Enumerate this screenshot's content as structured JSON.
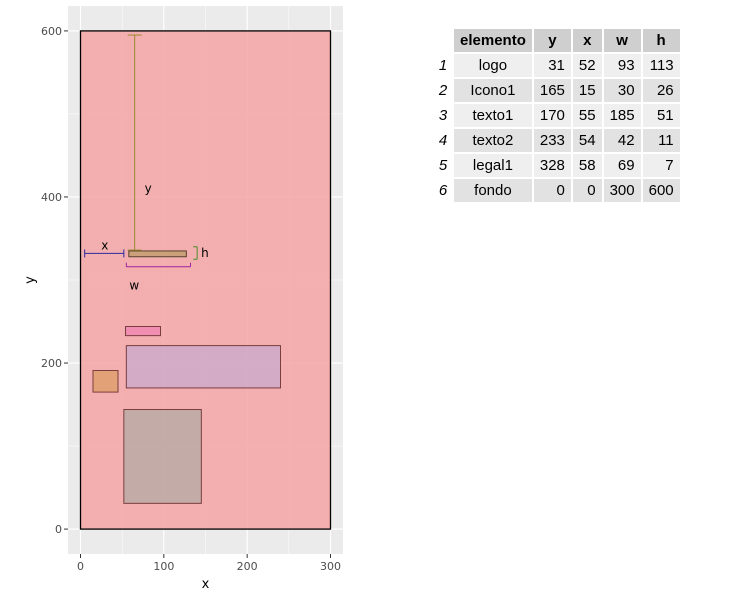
{
  "chart_data": {
    "type": "rect-layout",
    "xlabel": "x",
    "ylabel": "y",
    "xlim": [
      -15,
      315
    ],
    "ylim": [
      -30,
      630
    ],
    "x_ticks": [
      0,
      100,
      200,
      300
    ],
    "y_ticks": [
      0,
      200,
      400,
      600
    ],
    "grid": true,
    "rects": [
      {
        "name": "fondo",
        "xmin": 0,
        "xmax": 300,
        "ymin": 0,
        "ymax": 600,
        "fill": "#f4a4a4",
        "opacity": 0.85,
        "stroke": "#000000"
      },
      {
        "name": "logo",
        "xmin": 52,
        "xmax": 145,
        "ymin": 31,
        "ymax": 144,
        "fill": "#9aa8a0",
        "opacity": 0.55,
        "stroke": "#7a3e3e"
      },
      {
        "name": "Icono1",
        "xmin": 15,
        "xmax": 45,
        "ymin": 165,
        "ymax": 191,
        "fill": "#e0a070",
        "opacity": 0.9,
        "stroke": "#7a3e3e"
      },
      {
        "name": "texto1",
        "xmin": 55,
        "xmax": 240,
        "ymin": 170,
        "ymax": 221,
        "fill": "#b8a8d8",
        "opacity": 0.55,
        "stroke": "#7a3e3e"
      },
      {
        "name": "texto2",
        "xmin": 54,
        "xmax": 96,
        "ymin": 233,
        "ymax": 244,
        "fill": "#f08ab0",
        "opacity": 0.9,
        "stroke": "#7a3e3e"
      },
      {
        "name": "legal1",
        "xmin": 58,
        "xmax": 127,
        "ymin": 328,
        "ymax": 335,
        "fill": "#c8a078",
        "opacity": 0.95,
        "stroke": "#5a3e2e"
      }
    ],
    "annotations": {
      "y": {
        "label": "y",
        "x": 65,
        "from": 336,
        "to": 595,
        "color": "#9a8a30"
      },
      "x": {
        "label": "x",
        "y": 332,
        "from": 5,
        "to": 52,
        "color": "#2a2aa0"
      },
      "w": {
        "label": "w",
        "y": 316,
        "from": 55,
        "to": 132,
        "color": "#a020a0"
      },
      "h": {
        "label": "h",
        "x": 140,
        "from": 325,
        "to": 340,
        "color": "#4a8a2a"
      }
    }
  },
  "table": {
    "headers": [
      "elemento",
      "y",
      "x",
      "w",
      "h"
    ],
    "rows": [
      {
        "n": "1",
        "elemento": "logo",
        "y": "31",
        "x": "52",
        "w": "93",
        "h": "113"
      },
      {
        "n": "2",
        "elemento": "Icono1",
        "y": "165",
        "x": "15",
        "w": "30",
        "h": "26"
      },
      {
        "n": "3",
        "elemento": "texto1",
        "y": "170",
        "x": "55",
        "w": "185",
        "h": "51"
      },
      {
        "n": "4",
        "elemento": "texto2",
        "y": "233",
        "x": "54",
        "w": "42",
        "h": "11"
      },
      {
        "n": "5",
        "elemento": "legal1",
        "y": "328",
        "x": "58",
        "w": "69",
        "h": "7"
      },
      {
        "n": "6",
        "elemento": "fondo",
        "y": "0",
        "x": "0",
        "w": "300",
        "h": "600"
      }
    ]
  }
}
